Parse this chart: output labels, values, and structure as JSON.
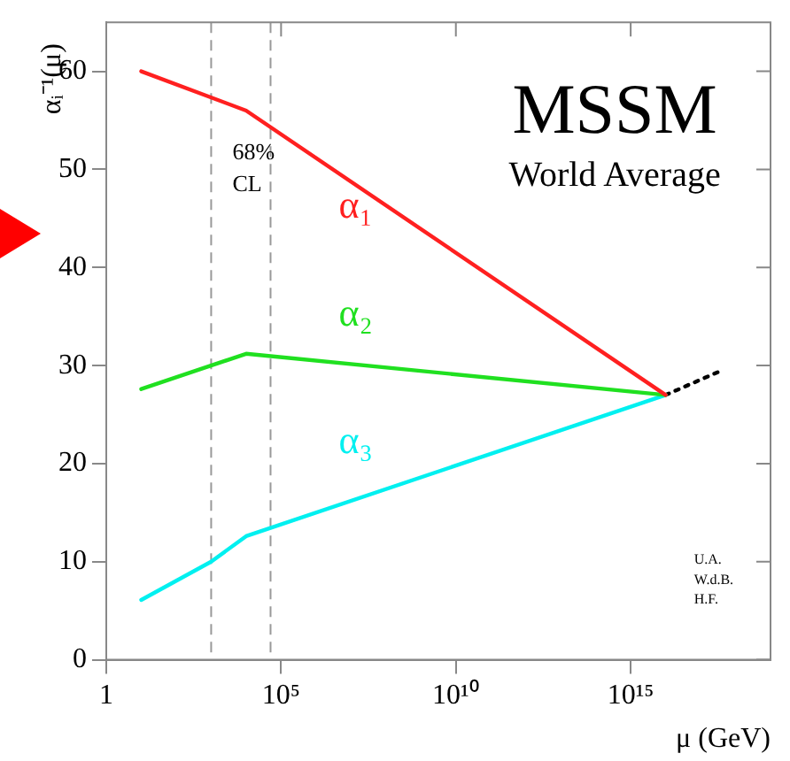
{
  "chart_data": {
    "type": "line",
    "title": "MSSM",
    "subtitle": "World Average",
    "xlabel": "μ (GeV)",
    "ylabel": "αᵢ⁻¹(μ)",
    "log": "x",
    "xlim": [
      1,
      1e+19
    ],
    "xticks": [
      1,
      {
        "value": 100000,
        "label": "10⁵"
      },
      {
        "value": 10000000000,
        "label": "10¹⁰"
      },
      {
        "value": 1000000000000000,
        "label": "10¹⁵"
      }
    ],
    "ylim": [
      0,
      65
    ],
    "yticks": [
      0,
      10,
      20,
      30,
      40,
      50,
      60
    ],
    "grid": false,
    "legend": false,
    "marker": "none",
    "series": [
      {
        "color": "#ff2020",
        "x": [
          10,
          10000,
          1e+16
        ],
        "values": [
          60,
          56,
          27
        ]
      },
      {
        "color": "#20e020",
        "x": [
          10,
          10000,
          1e+16
        ],
        "values": [
          27.6,
          31.2,
          27
        ]
      },
      {
        "color": "#00f0f0",
        "x": [
          10,
          1000,
          10000,
          1e+16
        ],
        "values": [
          6.1,
          10,
          12.6,
          27
        ]
      },
      {
        "color": "#000000",
        "line_style": "dotted",
        "x": [
          1e+16,
          4e+17
        ],
        "values": [
          27,
          29.5
        ]
      }
    ],
    "ref_lines": [
      {
        "axis": "x",
        "value": 1000,
        "color": "#999999",
        "line_style": "dashed"
      },
      {
        "axis": "x",
        "value": 50000,
        "color": "#999999",
        "line_style": "dashed"
      }
    ],
    "annotations": [
      "α₁",
      "α₂",
      "α₃",
      "68%\nCL",
      "U.A.\nW.d.B.\nH.F."
    ]
  }
}
